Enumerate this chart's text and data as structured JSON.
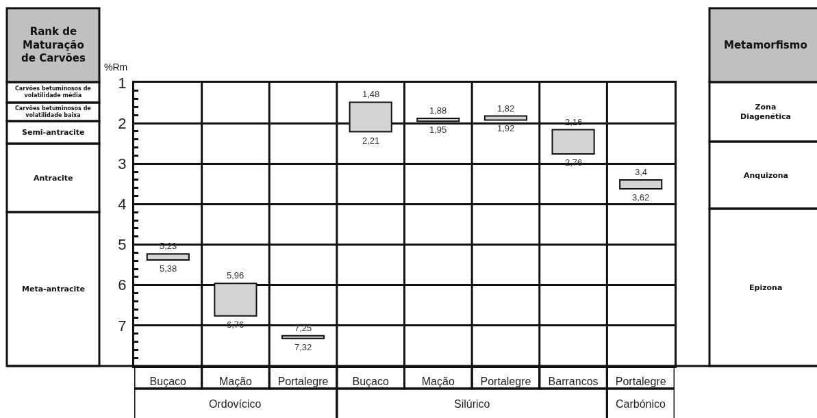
{
  "chart_data": {
    "type": "bar",
    "categories": [
      "Buçaco",
      "Mação",
      "Portalegre",
      "Buçaco",
      "Mação",
      "Portalegre",
      "Barrancos",
      "Portalegre"
    ],
    "base": [
      5.23,
      5.96,
      7.25,
      1.48,
      1.88,
      1.82,
      2.16,
      3.4
    ],
    "values": [
      0.15,
      0.8,
      0.07,
      0.73,
      0.07,
      0.1,
      0.6,
      0.22
    ],
    "color": "#d4d4d4",
    "ylabel": "%Rm",
    "ylim": [
      8,
      1
    ],
    "yticks": [
      1,
      {
        "value": 1.2,
        "label": null
      },
      {
        "value": 1.4,
        "label": null
      },
      {
        "value": 1.6,
        "label": null
      },
      {
        "value": 1.8,
        "label": null
      },
      2,
      {
        "value": 2.2,
        "label": null
      },
      {
        "value": 2.4,
        "label": null
      },
      {
        "value": 2.6,
        "label": null
      },
      {
        "value": 2.8,
        "label": null
      },
      3,
      {
        "value": 3.2,
        "label": null
      },
      {
        "value": 3.4,
        "label": null
      },
      {
        "value": 3.6,
        "label": null
      },
      {
        "value": 3.8,
        "label": null
      },
      4,
      {
        "value": 4.2,
        "label": null
      },
      {
        "value": 4.4,
        "label": null
      },
      {
        "value": 4.6,
        "label": null
      },
      {
        "value": 4.8,
        "label": null
      },
      5,
      {
        "value": 5.2,
        "label": null
      },
      {
        "value": 5.4,
        "label": null
      },
      {
        "value": 5.6,
        "label": null
      },
      {
        "value": 5.8,
        "label": null
      },
      6,
      {
        "value": 6.2,
        "label": null
      },
      {
        "value": 6.4,
        "label": null
      },
      {
        "value": 6.6,
        "label": null
      },
      {
        "value": 6.8,
        "label": null
      },
      7,
      {
        "value": 7.2,
        "label": null
      },
      {
        "value": 7.4,
        "label": null
      },
      {
        "value": 7.6,
        "label": null
      },
      {
        "value": 7.8,
        "label": null
      }
    ],
    "grid": true,
    "annotations": [
      "Rank de Maturação de Carvões",
      "Carvões betuminosos de volatilidade média",
      "Carvões betuminosos de volatilidade baixa",
      "Semi-antracite",
      "Antracite",
      "Meta-antracite",
      "Metamorfismo",
      "Zona Diagenética",
      "Anquizona",
      "Epizona",
      "Ordovícico",
      "Silúrico",
      "Carbónico",
      "5,23",
      "5,38",
      "5,96",
      "6,76",
      "7,25",
      "7,32",
      "1,48",
      "2,21",
      "1,88",
      "1,95",
      "1,82",
      "1,92",
      "2,16",
      "2,76",
      "3,4",
      "3,62"
    ]
  }
}
